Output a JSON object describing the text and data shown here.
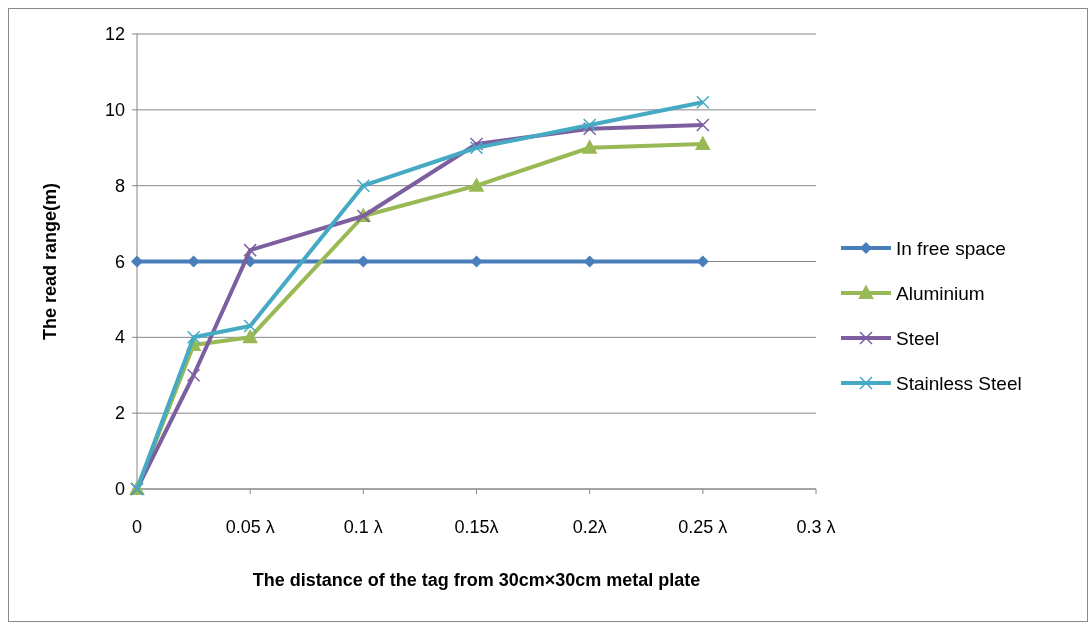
{
  "chart_data": {
    "type": "line",
    "xlabel": "The distance of the tag from 30cm×30cm metal plate",
    "ylabel": "The read range(m)",
    "x": [
      0,
      0.025,
      0.05,
      0.1,
      0.15,
      0.2,
      0.25
    ],
    "xlim": [
      0,
      0.3
    ],
    "xticks": [
      0,
      {
        "value": 0.05,
        "label": "0.05 λ"
      },
      {
        "value": 0.1,
        "label": "0.1 λ"
      },
      {
        "value": 0.15,
        "label": "0.15λ"
      },
      {
        "value": 0.2,
        "label": "0.2λ"
      },
      {
        "value": 0.25,
        "label": "0.25 λ"
      },
      {
        "value": 0.3,
        "label": "0.3 λ"
      }
    ],
    "ylim": [
      0,
      12
    ],
    "yticks": [
      0,
      2,
      4,
      6,
      8,
      10,
      12
    ],
    "grid": "y",
    "legend": "right",
    "series": [
      {
        "name": "In free space",
        "color": "#4a7ebb",
        "marker": "diamond",
        "values": [
          6,
          6,
          6,
          6,
          6,
          6,
          6
        ]
      },
      {
        "name": "Aluminium",
        "color": "#98b954",
        "marker": "triangle",
        "values": [
          0,
          3.8,
          4,
          7.2,
          8,
          9,
          9.1
        ]
      },
      {
        "name": "Steel",
        "color": "#7d5fa0",
        "marker": "cross",
        "values": [
          0,
          3,
          6.3,
          7.2,
          9.1,
          9.5,
          9.6
        ]
      },
      {
        "name": "Stainless Steel",
        "color": "#46aac5",
        "marker": "cross",
        "values": [
          0,
          4,
          4.3,
          8,
          9,
          9.6,
          10.2
        ]
      }
    ]
  }
}
